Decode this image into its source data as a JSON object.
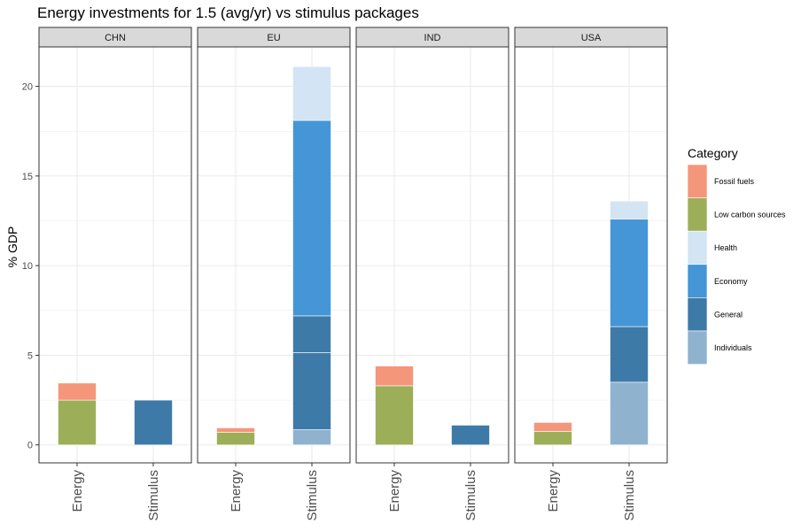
{
  "chart_data": {
    "type": "bar",
    "title": "Energy investments for 1.5 (avg/yr) vs stimulus packages",
    "ylabel": "% GDP",
    "xlabel": "",
    "ylim": [
      -1,
      22.2
    ],
    "yticks": [
      0,
      5,
      10,
      15,
      20
    ],
    "stacked": true,
    "facets": [
      "CHN",
      "EU",
      "IND",
      "USA"
    ],
    "categories": [
      "Energy",
      "Stimulus"
    ],
    "legend": {
      "title": "Category",
      "placement": "right",
      "entries": [
        {
          "name": "Fossil fuels",
          "color": "#f4967a"
        },
        {
          "name": "Low carbon sources",
          "color": "#9caf58"
        },
        {
          "name": "Health",
          "color": "#d3e4f4"
        },
        {
          "name": "Economy",
          "color": "#4496d6"
        },
        {
          "name": "General",
          "color": "#3e7aa8"
        },
        {
          "name": "Individuals",
          "color": "#8fb3cf"
        }
      ]
    },
    "panels": [
      {
        "facet": "CHN",
        "bars": [
          {
            "x": "Energy",
            "segments": [
              {
                "category": "Low carbon sources",
                "value": 2.5
              },
              {
                "category": "Fossil fuels",
                "value": 0.95
              }
            ]
          },
          {
            "x": "Stimulus",
            "segments": [
              {
                "category": "General",
                "value": 2.5
              }
            ]
          }
        ]
      },
      {
        "facet": "EU",
        "bars": [
          {
            "x": "Energy",
            "segments": [
              {
                "category": "Low carbon sources",
                "value": 0.7
              },
              {
                "category": "Fossil fuels",
                "value": 0.25
              }
            ]
          },
          {
            "x": "Stimulus",
            "segments": [
              {
                "category": "Individuals",
                "value": 0.85
              },
              {
                "category": "General",
                "value": 4.3
              },
              {
                "category": "General",
                "value": 2.05
              },
              {
                "category": "Economy",
                "value": 10.9
              },
              {
                "category": "Health",
                "value": 3.0
              }
            ]
          }
        ]
      },
      {
        "facet": "IND",
        "bars": [
          {
            "x": "Energy",
            "segments": [
              {
                "category": "Low carbon sources",
                "value": 3.3
              },
              {
                "category": "Fossil fuels",
                "value": 1.1
              }
            ]
          },
          {
            "x": "Stimulus",
            "segments": [
              {
                "category": "General",
                "value": 1.1
              }
            ]
          }
        ]
      },
      {
        "facet": "USA",
        "bars": [
          {
            "x": "Energy",
            "segments": [
              {
                "category": "Low carbon sources",
                "value": 0.75
              },
              {
                "category": "Fossil fuels",
                "value": 0.5
              }
            ]
          },
          {
            "x": "Stimulus",
            "segments": [
              {
                "category": "Individuals",
                "value": 3.5
              },
              {
                "category": "General",
                "value": 3.1
              },
              {
                "category": "Economy",
                "value": 6.0
              },
              {
                "category": "Health",
                "value": 1.0
              }
            ]
          }
        ]
      }
    ]
  }
}
